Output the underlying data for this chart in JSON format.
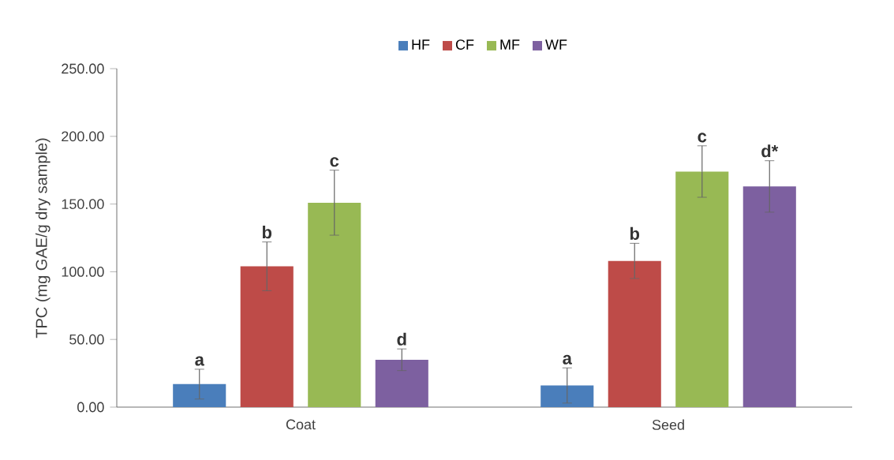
{
  "chart_data": {
    "type": "bar",
    "ylabel": "TPC (mg GAE/g dry sample)",
    "categories": [
      "Coat",
      "Seed"
    ],
    "series": [
      {
        "name": "HF",
        "color": "#4a7ebb",
        "values": [
          17,
          16
        ],
        "errors": [
          11,
          13
        ],
        "value_labels": [
          "a",
          "a"
        ]
      },
      {
        "name": "CF",
        "color": "#be4b48",
        "values": [
          104,
          108
        ],
        "errors": [
          18,
          13
        ],
        "value_labels": [
          "b",
          "b"
        ]
      },
      {
        "name": "MF",
        "color": "#98b954",
        "values": [
          151,
          174
        ],
        "errors": [
          24,
          19
        ],
        "value_labels": [
          "c",
          "c"
        ]
      },
      {
        "name": "WF",
        "color": "#7d60a0",
        "values": [
          35,
          163
        ],
        "errors": [
          8,
          19
        ],
        "value_labels": [
          "d",
          "d*"
        ]
      }
    ],
    "ylim": [
      0,
      250
    ],
    "yticks": [
      {
        "value": 0,
        "label": "0.00"
      },
      {
        "value": 50,
        "label": "50.00"
      },
      {
        "value": 100,
        "label": "100.00"
      },
      {
        "value": 150,
        "label": "150.00"
      },
      {
        "value": 200,
        "label": "200.00"
      },
      {
        "value": 250,
        "label": "250.00"
      }
    ],
    "legend": "top"
  }
}
